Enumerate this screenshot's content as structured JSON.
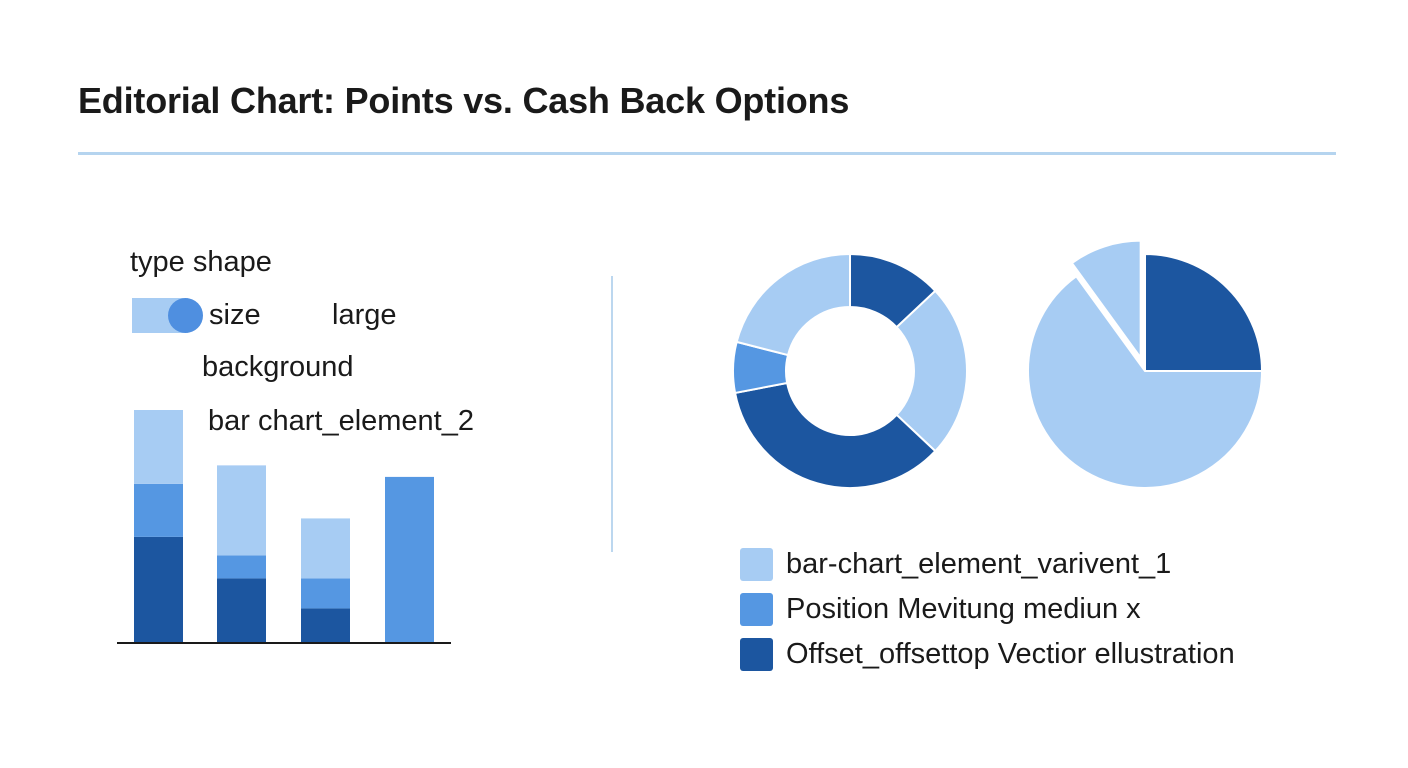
{
  "header": {
    "title": "Editorial Chart: Points vs. Cash Back Options"
  },
  "colors": {
    "light": "#a7ccf3",
    "medium": "#5597e2",
    "dark": "#1c56a0",
    "rule": "#b5d4ef"
  },
  "left_panel": {
    "labels": {
      "type_shape": "type shape",
      "size": "size",
      "large": "large",
      "background": "background",
      "bar_chart_element": "bar chart_element_2"
    }
  },
  "legend": {
    "items": [
      {
        "label": "bar-chart_element_varivent_1",
        "color": "#a7ccf3"
      },
      {
        "label": "Position Mevitung mediun x",
        "color": "#5597e2"
      },
      {
        "label": "Offset_offsettop Vectior ellustration",
        "color": "#1c56a0"
      }
    ]
  },
  "chart_data": [
    {
      "type": "bar",
      "stacked": true,
      "categories": [
        "",
        "",
        "",
        ""
      ],
      "series": [
        {
          "color": "#1c56a0",
          "values": [
            46,
            28,
            15,
            0
          ]
        },
        {
          "color": "#5597e2",
          "values": [
            23,
            10,
            13,
            72
          ]
        },
        {
          "color": "#a7ccf3",
          "values": [
            32,
            39,
            26,
            0
          ]
        }
      ],
      "ylim": [
        0,
        101
      ],
      "grid": false
    },
    {
      "type": "pie",
      "variant": "donut",
      "slices": [
        {
          "color": "#1c56a0",
          "value": 13
        },
        {
          "color": "#a7ccf3",
          "value": 24
        },
        {
          "color": "#1c56a0",
          "value": 35
        },
        {
          "color": "#5597e2",
          "value": 7
        },
        {
          "color": "#a7ccf3",
          "value": 21
        }
      ]
    },
    {
      "type": "pie",
      "slices": [
        {
          "color": "#1c56a0",
          "value": 25
        },
        {
          "color": "#a7ccf3",
          "value": 65
        },
        {
          "color": "#a7ccf3",
          "value": 10,
          "exploded": true
        }
      ]
    }
  ]
}
